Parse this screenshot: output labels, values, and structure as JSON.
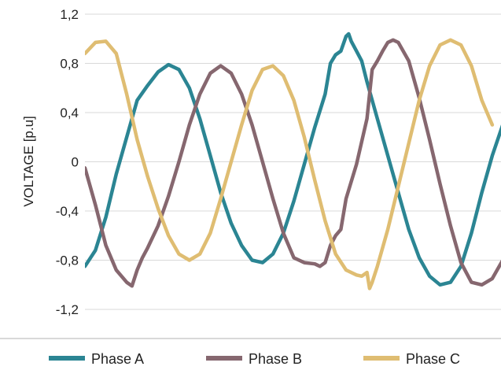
{
  "chart_data": {
    "type": "line",
    "title": "",
    "xlabel": "",
    "ylabel": "VOLTAGE [p.u]",
    "ylim": [
      -1.2,
      1.2
    ],
    "yticks": [
      "1,2",
      "0,8",
      "0,4",
      "0",
      "-0,4",
      "-0,8",
      "-1,2"
    ],
    "grid": "horizontal",
    "legend": "bottom",
    "x_range": [
      0,
      100
    ],
    "series": [
      {
        "name": "Phase A",
        "color": "#2b8593",
        "points": [
          [
            0,
            -0.85
          ],
          [
            2,
            -0.72
          ],
          [
            4,
            -0.45
          ],
          [
            6,
            -0.1
          ],
          [
            8,
            0.2
          ],
          [
            10,
            0.5
          ],
          [
            12,
            0.62
          ],
          [
            14,
            0.73
          ],
          [
            16,
            0.79
          ],
          [
            18,
            0.75
          ],
          [
            20,
            0.6
          ],
          [
            22,
            0.35
          ],
          [
            24,
            0.05
          ],
          [
            26,
            -0.25
          ],
          [
            28,
            -0.5
          ],
          [
            30,
            -0.68
          ],
          [
            32,
            -0.8
          ],
          [
            34,
            -0.82
          ],
          [
            36,
            -0.75
          ],
          [
            38,
            -0.58
          ],
          [
            40,
            -0.32
          ],
          [
            42,
            -0.02
          ],
          [
            44,
            0.28
          ],
          [
            46,
            0.55
          ],
          [
            47,
            0.8
          ],
          [
            48,
            0.87
          ],
          [
            49,
            0.9
          ],
          [
            50,
            1.02
          ],
          [
            50.5,
            1.04
          ],
          [
            51,
            0.98
          ],
          [
            52,
            0.9
          ],
          [
            53,
            0.82
          ],
          [
            54,
            0.65
          ],
          [
            56,
            0.35
          ],
          [
            58,
            0.05
          ],
          [
            60,
            -0.25
          ],
          [
            62,
            -0.55
          ],
          [
            64,
            -0.78
          ],
          [
            66,
            -0.93
          ],
          [
            68,
            -1.0
          ],
          [
            70,
            -0.98
          ],
          [
            72,
            -0.85
          ],
          [
            74,
            -0.58
          ],
          [
            76,
            -0.25
          ],
          [
            78,
            0.05
          ],
          [
            80,
            0.3
          ]
        ]
      },
      {
        "name": "Phase B",
        "color": "#86676f",
        "points": [
          [
            0,
            -0.05
          ],
          [
            2,
            -0.35
          ],
          [
            4,
            -0.68
          ],
          [
            6,
            -0.88
          ],
          [
            8,
            -0.98
          ],
          [
            9,
            -1.01
          ],
          [
            10,
            -0.88
          ],
          [
            11,
            -0.78
          ],
          [
            12,
            -0.7
          ],
          [
            14,
            -0.52
          ],
          [
            16,
            -0.28
          ],
          [
            18,
            0.0
          ],
          [
            20,
            0.3
          ],
          [
            22,
            0.55
          ],
          [
            24,
            0.72
          ],
          [
            26,
            0.78
          ],
          [
            28,
            0.72
          ],
          [
            30,
            0.55
          ],
          [
            32,
            0.3
          ],
          [
            34,
            0.0
          ],
          [
            36,
            -0.3
          ],
          [
            38,
            -0.58
          ],
          [
            40,
            -0.78
          ],
          [
            42,
            -0.82
          ],
          [
            44,
            -0.83
          ],
          [
            45,
            -0.85
          ],
          [
            46,
            -0.82
          ],
          [
            47,
            -0.68
          ],
          [
            48,
            -0.6
          ],
          [
            49,
            -0.55
          ],
          [
            50,
            -0.3
          ],
          [
            52,
            -0.02
          ],
          [
            54,
            0.35
          ],
          [
            55,
            0.75
          ],
          [
            56,
            0.82
          ],
          [
            57,
            0.9
          ],
          [
            58,
            0.97
          ],
          [
            59,
            0.99
          ],
          [
            60,
            0.97
          ],
          [
            62,
            0.82
          ],
          [
            64,
            0.52
          ],
          [
            66,
            0.18
          ],
          [
            68,
            -0.18
          ],
          [
            70,
            -0.52
          ],
          [
            72,
            -0.82
          ],
          [
            74,
            -0.98
          ],
          [
            76,
            -1.0
          ],
          [
            78,
            -0.95
          ],
          [
            80,
            -0.8
          ]
        ]
      },
      {
        "name": "Phase C",
        "color": "#dfbd72",
        "points": [
          [
            0,
            0.88
          ],
          [
            2,
            0.97
          ],
          [
            4,
            0.98
          ],
          [
            6,
            0.88
          ],
          [
            8,
            0.55
          ],
          [
            10,
            0.18
          ],
          [
            12,
            -0.12
          ],
          [
            14,
            -0.38
          ],
          [
            16,
            -0.6
          ],
          [
            18,
            -0.75
          ],
          [
            20,
            -0.8
          ],
          [
            22,
            -0.75
          ],
          [
            24,
            -0.58
          ],
          [
            26,
            -0.3
          ],
          [
            28,
            0.0
          ],
          [
            30,
            0.3
          ],
          [
            32,
            0.58
          ],
          [
            34,
            0.75
          ],
          [
            36,
            0.78
          ],
          [
            38,
            0.7
          ],
          [
            40,
            0.5
          ],
          [
            42,
            0.2
          ],
          [
            44,
            -0.15
          ],
          [
            46,
            -0.48
          ],
          [
            48,
            -0.75
          ],
          [
            50,
            -0.88
          ],
          [
            52,
            -0.92
          ],
          [
            53,
            -0.93
          ],
          [
            54,
            -0.9
          ],
          [
            54.5,
            -1.03
          ],
          [
            55,
            -0.98
          ],
          [
            56,
            -0.85
          ],
          [
            58,
            -0.55
          ],
          [
            60,
            -0.2
          ],
          [
            62,
            0.15
          ],
          [
            64,
            0.5
          ],
          [
            66,
            0.78
          ],
          [
            68,
            0.95
          ],
          [
            70,
            0.99
          ],
          [
            72,
            0.95
          ],
          [
            74,
            0.78
          ],
          [
            76,
            0.5
          ],
          [
            78,
            0.3
          ]
        ]
      }
    ]
  },
  "colors": {
    "grid": "#d9d9d9",
    "legend_rule": "#b3b3b3"
  }
}
